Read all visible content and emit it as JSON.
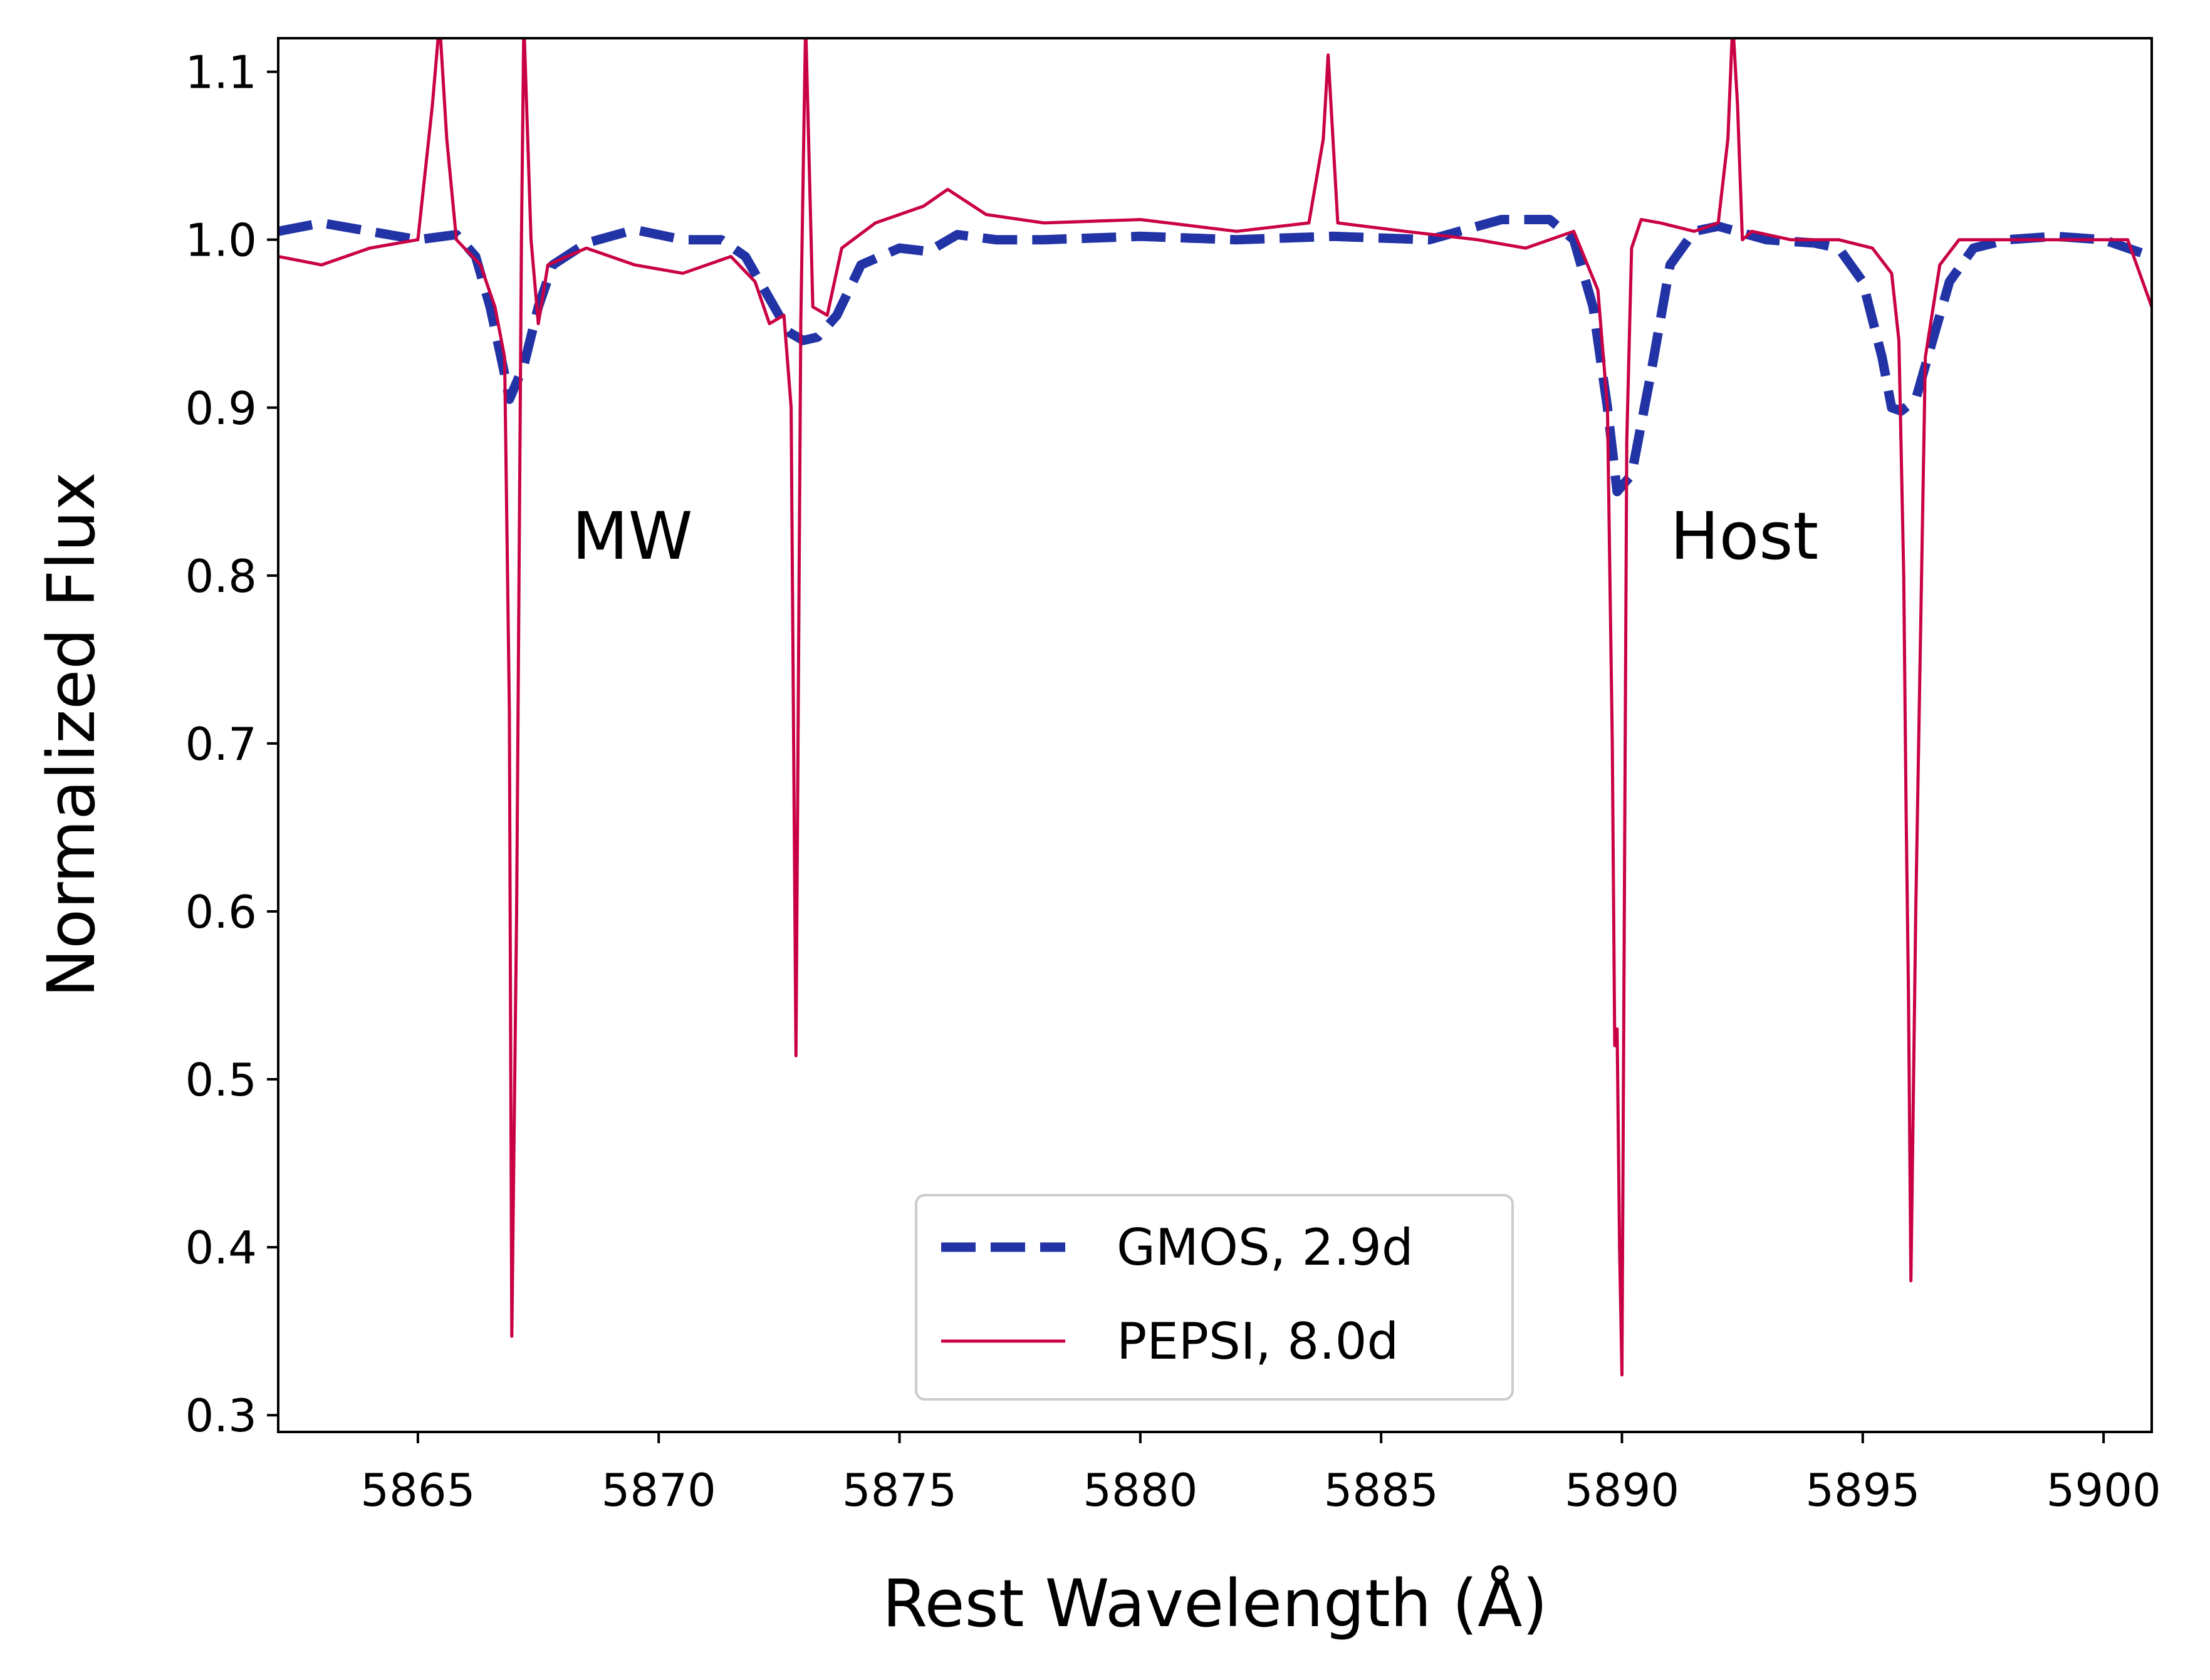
{
  "chart_data": {
    "type": "line",
    "title": "",
    "xlabel": "Rest Wavelength (Å)",
    "ylabel": "Normalized Flux",
    "xlim": [
      5862.1,
      5901.0
    ],
    "ylim": [
      0.29,
      1.12
    ],
    "xticks": [
      5865,
      5870,
      5875,
      5880,
      5885,
      5890,
      5895,
      5900
    ],
    "yticks": [
      0.3,
      0.4,
      0.5,
      0.6,
      0.7,
      0.8,
      0.9,
      1.0,
      1.1
    ],
    "xtick_labels": [
      "5865",
      "5870",
      "5875",
      "5880",
      "5885",
      "5890",
      "5895",
      "5900"
    ],
    "ytick_labels": [
      "0.3",
      "0.4",
      "0.5",
      "0.6",
      "0.7",
      "0.8",
      "0.9",
      "1.0",
      "1.1"
    ],
    "grid": false,
    "legend_position": "bottom-center",
    "annotations": [
      {
        "text": "MW",
        "x": 5868.2,
        "y": 0.81
      },
      {
        "text": "Host",
        "x": 5891.0,
        "y": 0.81
      }
    ],
    "series": [
      {
        "name": "GMOS, 2.9d",
        "color": "#2233a6",
        "style": "dashed",
        "x": [
          5862.1,
          5863.0,
          5864.0,
          5865.0,
          5865.8,
          5866.2,
          5866.5,
          5866.8,
          5866.9,
          5867.2,
          5867.5,
          5867.8,
          5868.5,
          5869.5,
          5870.5,
          5871.3,
          5871.8,
          5872.3,
          5872.7,
          5873.0,
          5873.3,
          5873.7,
          5874.2,
          5875.0,
          5875.6,
          5876.2,
          5877.0,
          5878.0,
          5880.0,
          5882.0,
          5884.0,
          5886.0,
          5887.5,
          5888.5,
          5889.0,
          5889.4,
          5889.7,
          5889.9,
          5890.2,
          5890.6,
          5891.0,
          5891.5,
          5892.0,
          5893.0,
          5894.0,
          5894.5,
          5895.0,
          5895.4,
          5895.6,
          5895.8,
          5896.1,
          5896.4,
          5896.8,
          5897.3,
          5898.0,
          5899.0,
          5900.0,
          5901.0
        ],
        "y": [
          1.005,
          1.01,
          1.005,
          1.0,
          1.003,
          0.99,
          0.96,
          0.92,
          0.905,
          0.925,
          0.96,
          0.985,
          0.998,
          1.006,
          1.0,
          1.0,
          0.99,
          0.965,
          0.945,
          0.94,
          0.942,
          0.955,
          0.985,
          0.995,
          0.993,
          1.003,
          1.0,
          1.0,
          1.002,
          1.0,
          1.002,
          1.0,
          1.012,
          1.012,
          1.0,
          0.96,
          0.9,
          0.85,
          0.86,
          0.92,
          0.985,
          1.005,
          1.008,
          1.0,
          0.998,
          0.995,
          0.975,
          0.93,
          0.9,
          0.898,
          0.905,
          0.935,
          0.975,
          0.995,
          1.0,
          1.002,
          1.0,
          0.99
        ]
      },
      {
        "name": "PEPSI, 8.0d",
        "color": "#c90044",
        "style": "solid",
        "x": [
          5862.1,
          5863.0,
          5864.0,
          5865.0,
          5865.3,
          5865.45,
          5865.6,
          5865.8,
          5866.3,
          5866.6,
          5866.8,
          5866.9,
          5866.95,
          5867.05,
          5867.15,
          5867.2,
          5867.35,
          5867.5,
          5867.7,
          5868.5,
          5869.5,
          5870.5,
          5871.5,
          5872.0,
          5872.3,
          5872.6,
          5872.75,
          5872.85,
          5872.95,
          5873.05,
          5873.2,
          5873.5,
          5873.8,
          5874.5,
          5875.5,
          5876.0,
          5876.8,
          5878.0,
          5880.0,
          5882.0,
          5883.5,
          5883.8,
          5883.9,
          5884.1,
          5885.5,
          5887.0,
          5888.0,
          5889.0,
          5889.5,
          5889.7,
          5889.8,
          5889.85,
          5889.9,
          5889.95,
          5890.0,
          5890.05,
          5890.1,
          5890.2,
          5890.4,
          5890.8,
          5891.5,
          5892.0,
          5892.2,
          5892.3,
          5892.4,
          5892.5,
          5892.7,
          5893.5,
          5894.5,
          5895.2,
          5895.6,
          5895.75,
          5895.85,
          5895.9,
          5895.95,
          5896.0,
          5896.1,
          5896.3,
          5896.6,
          5897.0,
          5898.0,
          5899.5,
          5900.5,
          5901.0
        ],
        "y": [
          0.99,
          0.985,
          0.995,
          1.0,
          1.08,
          1.13,
          1.06,
          1.0,
          0.985,
          0.96,
          0.93,
          0.72,
          0.347,
          0.6,
          1.0,
          1.13,
          1.0,
          0.95,
          0.985,
          0.995,
          0.985,
          0.98,
          0.99,
          0.975,
          0.95,
          0.955,
          0.9,
          0.514,
          0.95,
          1.13,
          0.96,
          0.955,
          0.995,
          1.01,
          1.02,
          1.03,
          1.015,
          1.01,
          1.012,
          1.005,
          1.01,
          1.06,
          1.11,
          1.01,
          1.005,
          1.0,
          0.995,
          1.005,
          0.97,
          0.9,
          0.7,
          0.52,
          0.53,
          0.4,
          0.324,
          0.6,
          0.88,
          0.995,
          1.012,
          1.01,
          1.005,
          1.01,
          1.06,
          1.13,
          1.08,
          1.0,
          1.005,
          1.0,
          1.0,
          0.995,
          0.98,
          0.94,
          0.8,
          0.66,
          0.55,
          0.38,
          0.6,
          0.93,
          0.985,
          1.0,
          1.0,
          1.0,
          1.0,
          0.96
        ]
      }
    ]
  }
}
